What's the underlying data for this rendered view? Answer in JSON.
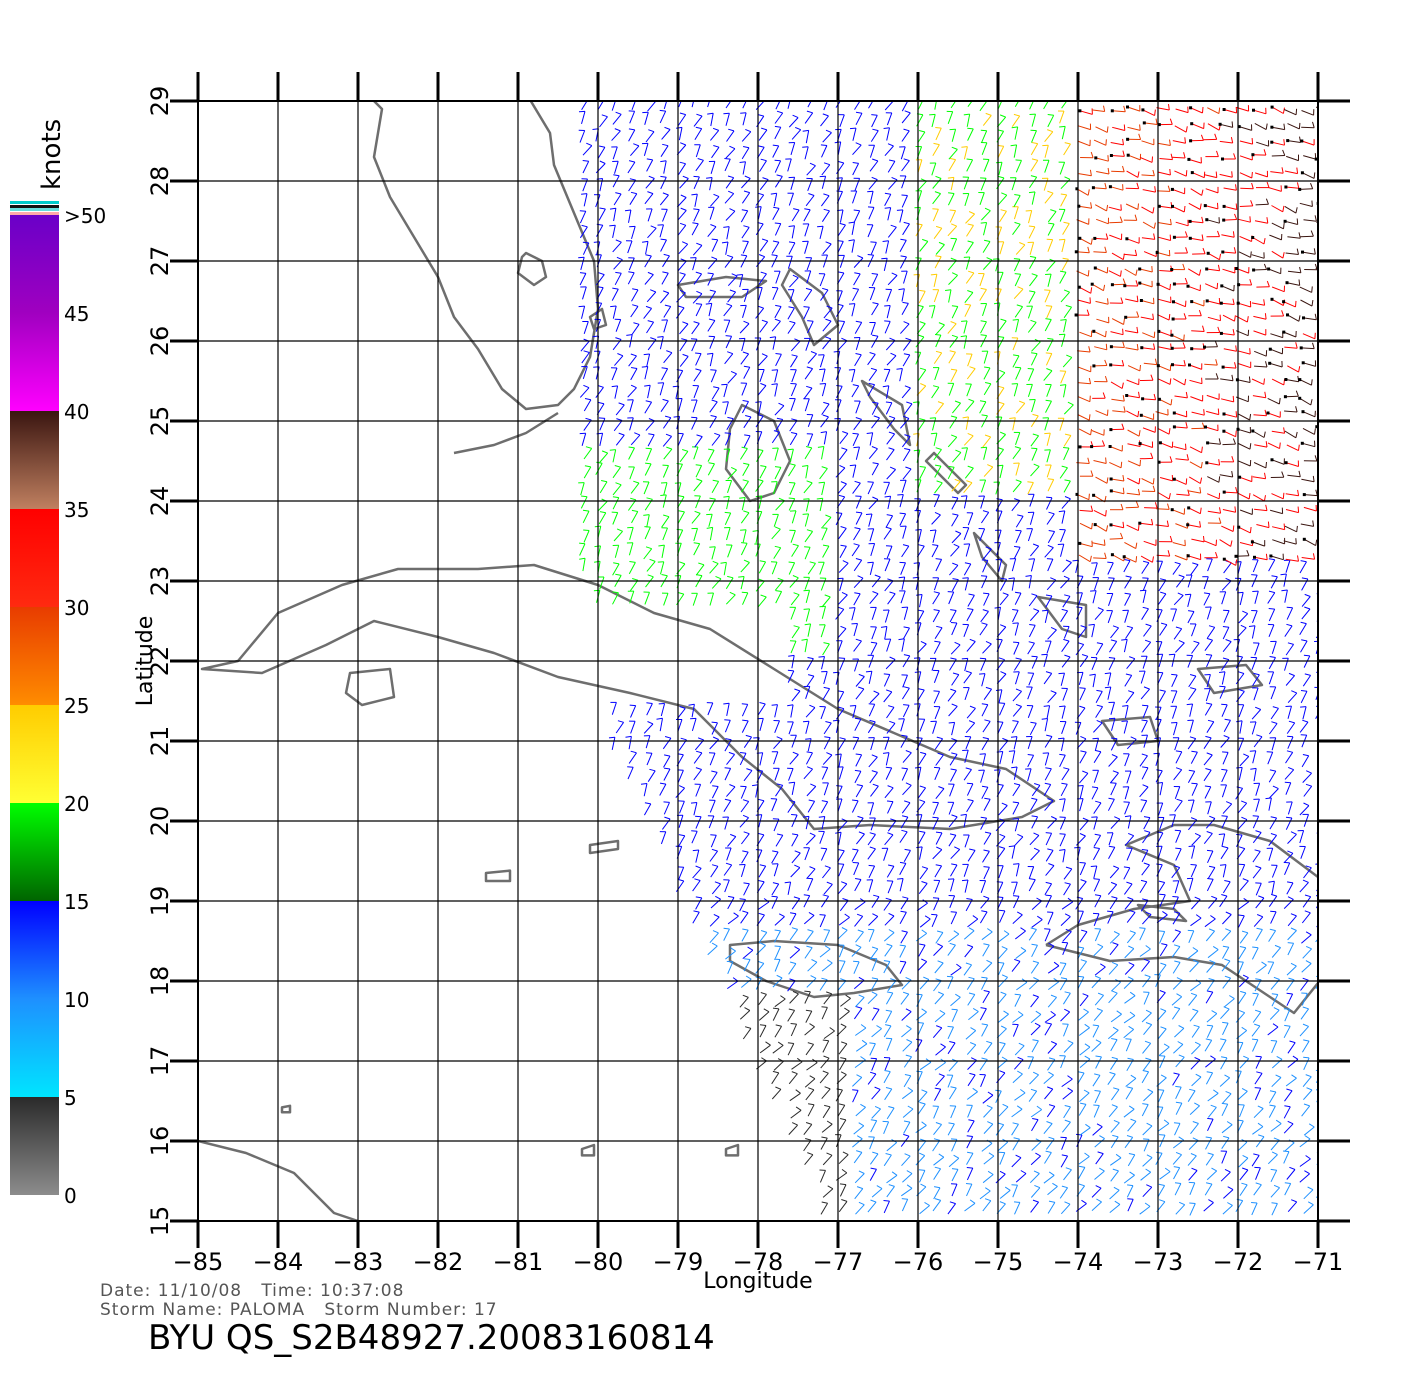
{
  "map": {
    "x_label": "Longitude",
    "y_label": "Latitude",
    "lon_range": [
      -85,
      -71
    ],
    "lat_range": [
      15,
      29
    ],
    "lon_ticks": [
      "−85",
      "−84",
      "−83",
      "−82",
      "−81",
      "−80",
      "−79",
      "−78",
      "−77",
      "−76",
      "−75",
      "−74",
      "−73",
      "−72",
      "−71"
    ],
    "lat_ticks": [
      "15",
      "16",
      "17",
      "18",
      "19",
      "20",
      "21",
      "22",
      "23",
      "24",
      "25",
      "26",
      "27",
      "28",
      "29"
    ],
    "grid": true,
    "coastline_color": "#6e6e6e",
    "grid_color": "#000000",
    "data_type": "wind barbs (speed in knots)"
  },
  "colorbar": {
    "unit_label": "knots",
    "labels": [
      "0",
      "5",
      "10",
      "15",
      "20",
      "25",
      "30",
      "35",
      "40",
      "45",
      ">50"
    ],
    "bands": [
      {
        "from": 0,
        "to": 5,
        "top": "#2a2a2a",
        "bottom": "#8c8c8c"
      },
      {
        "from": 5,
        "to": 10,
        "top": "#1e90ff",
        "bottom": "#00e5ff"
      },
      {
        "from": 10,
        "to": 15,
        "top": "#0000ff",
        "bottom": "#1e90ff"
      },
      {
        "from": 15,
        "to": 20,
        "top": "#00ff00",
        "bottom": "#006400"
      },
      {
        "from": 20,
        "to": 25,
        "top": "#ffcc00",
        "bottom": "#ffff33"
      },
      {
        "from": 25,
        "to": 30,
        "top": "#e83c00",
        "bottom": "#ff8c00"
      },
      {
        "from": 30,
        "to": 35,
        "top": "#ff0000",
        "bottom": "#ff2a10"
      },
      {
        "from": 35,
        "to": 40,
        "top": "#3a1510",
        "bottom": "#c08060"
      },
      {
        "from": 40,
        "to": 45,
        "top": "#a000c0",
        "bottom": "#ff00ff"
      },
      {
        "from": 45,
        "to": 50,
        "top": "#6a00c8",
        "bottom": "#a000c0"
      }
    ]
  },
  "info": {
    "line1": "Date: 11/10/08   Time: 10:37:08",
    "line2": "Storm Name: PALOMA   Storm Number: 17",
    "file_title": "BYU QS_S2B48927.20083160814"
  }
}
